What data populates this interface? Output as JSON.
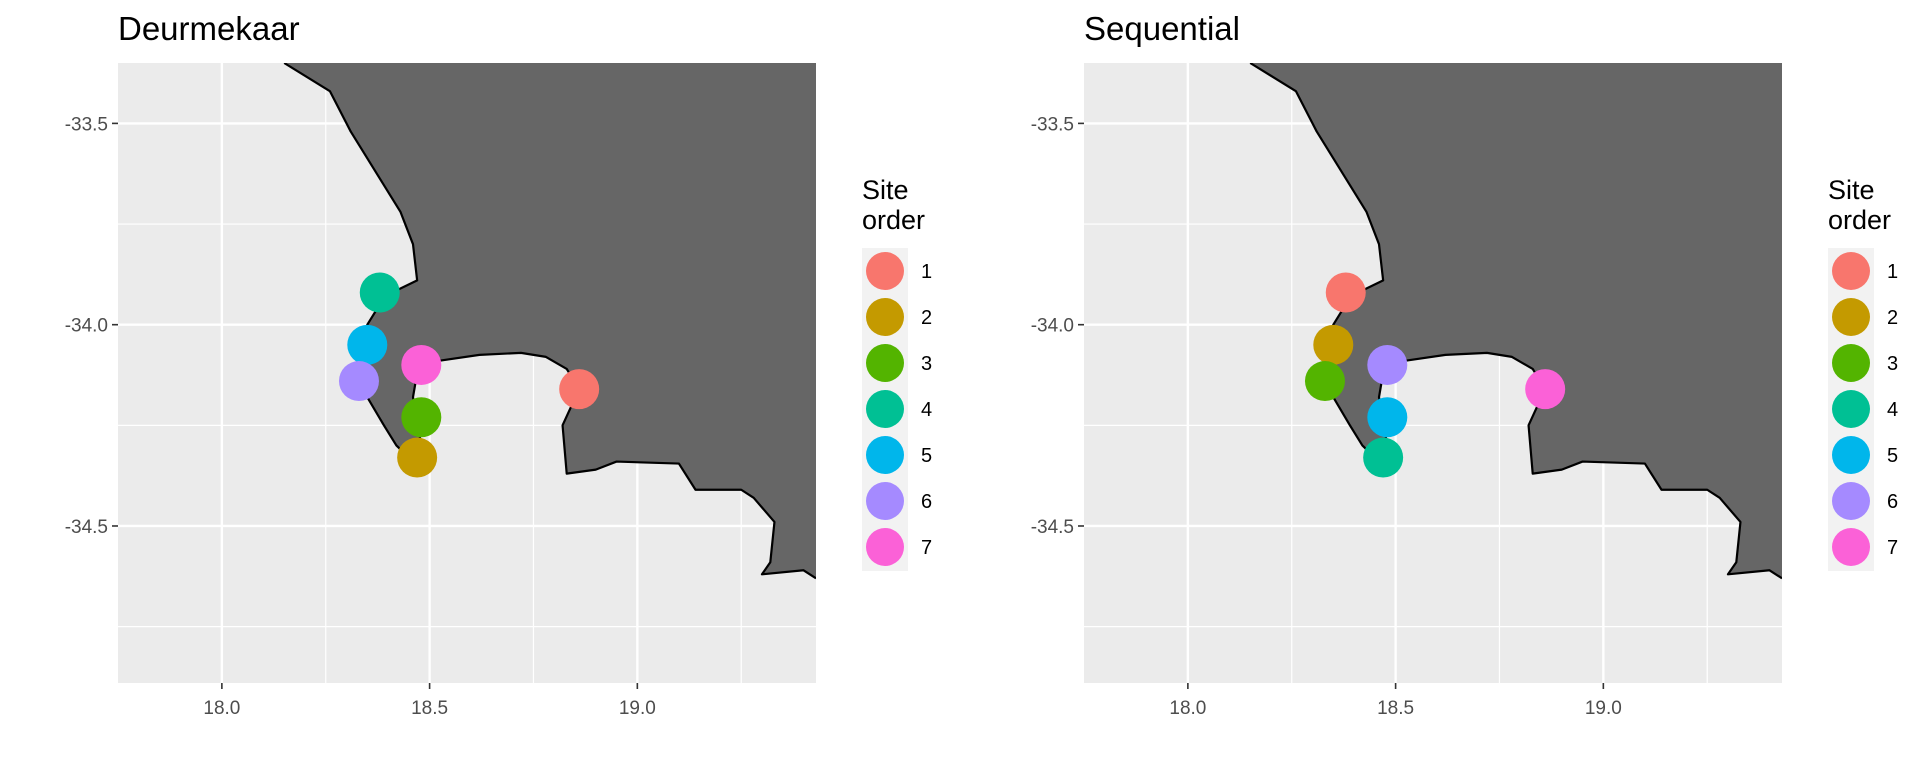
{
  "page": {
    "background": "#ffffff",
    "panel_background": "#ebebeb",
    "grid_color": "#ffffff",
    "land_color": "#666666",
    "coast_color": "#000000",
    "legend_key_background": "#f2f2f2"
  },
  "chart_data": [
    {
      "type": "map",
      "title": "Deurmekaar",
      "xlabel": "",
      "ylabel": "",
      "xlim": [
        17.75,
        19.43
      ],
      "ylim": [
        -34.89,
        -33.35
      ],
      "x_ticks": [
        18.0,
        18.5,
        19.0
      ],
      "x_tick_labels": [
        "18.0",
        "18.5",
        "19.0"
      ],
      "y_ticks": [
        -33.5,
        -34.0,
        -34.5
      ],
      "y_tick_labels": [
        "-33.5",
        "-34.0",
        "-34.5"
      ],
      "x_minor": [
        18.25,
        18.75,
        19.25
      ],
      "y_minor": [
        -33.75,
        -34.25,
        -34.75
      ],
      "grid": true,
      "legend_title": [
        "Site",
        "order"
      ],
      "legend_position": "right",
      "legend_items": [
        {
          "label": "1",
          "color": "#F8766D"
        },
        {
          "label": "2",
          "color": "#C49A00"
        },
        {
          "label": "3",
          "color": "#53B400"
        },
        {
          "label": "4",
          "color": "#00C094"
        },
        {
          "label": "5",
          "color": "#00B6EB"
        },
        {
          "label": "6",
          "color": "#A58AFF"
        },
        {
          "label": "7",
          "color": "#FB61D7"
        }
      ],
      "points": [
        {
          "lon": 18.86,
          "lat": -34.16,
          "site_order": "1"
        },
        {
          "lon": 18.47,
          "lat": -34.33,
          "site_order": "2"
        },
        {
          "lon": 18.48,
          "lat": -34.23,
          "site_order": "3"
        },
        {
          "lon": 18.38,
          "lat": -33.92,
          "site_order": "4"
        },
        {
          "lon": 18.35,
          "lat": -34.05,
          "site_order": "5"
        },
        {
          "lon": 18.33,
          "lat": -34.14,
          "site_order": "6"
        },
        {
          "lon": 18.48,
          "lat": -34.1,
          "site_order": "7"
        }
      ]
    },
    {
      "type": "map",
      "title": "Sequential",
      "xlabel": "",
      "ylabel": "",
      "xlim": [
        17.75,
        19.43
      ],
      "ylim": [
        -34.89,
        -33.35
      ],
      "x_ticks": [
        18.0,
        18.5,
        19.0
      ],
      "x_tick_labels": [
        "18.0",
        "18.5",
        "19.0"
      ],
      "y_ticks": [
        -33.5,
        -34.0,
        -34.5
      ],
      "y_tick_labels": [
        "-33.5",
        "-34.0",
        "-34.5"
      ],
      "x_minor": [
        18.25,
        18.75,
        19.25
      ],
      "y_minor": [
        -33.75,
        -34.25,
        -34.75
      ],
      "grid": true,
      "legend_title": [
        "Site",
        "order"
      ],
      "legend_position": "right",
      "legend_items": [
        {
          "label": "1",
          "color": "#F8766D"
        },
        {
          "label": "2",
          "color": "#C49A00"
        },
        {
          "label": "3",
          "color": "#53B400"
        },
        {
          "label": "4",
          "color": "#00C094"
        },
        {
          "label": "5",
          "color": "#00B6EB"
        },
        {
          "label": "6",
          "color": "#A58AFF"
        },
        {
          "label": "7",
          "color": "#FB61D7"
        }
      ],
      "points": [
        {
          "lon": 18.38,
          "lat": -33.92,
          "site_order": "1"
        },
        {
          "lon": 18.35,
          "lat": -34.05,
          "site_order": "2"
        },
        {
          "lon": 18.33,
          "lat": -34.14,
          "site_order": "3"
        },
        {
          "lon": 18.47,
          "lat": -34.33,
          "site_order": "4"
        },
        {
          "lon": 18.48,
          "lat": -34.23,
          "site_order": "5"
        },
        {
          "lon": 18.48,
          "lat": -34.1,
          "site_order": "6"
        },
        {
          "lon": 18.86,
          "lat": -34.16,
          "site_order": "7"
        }
      ]
    }
  ]
}
